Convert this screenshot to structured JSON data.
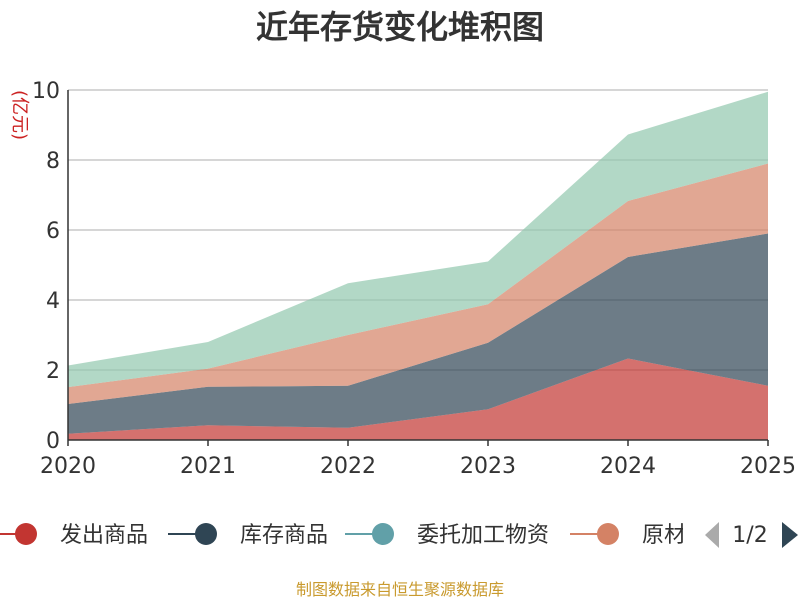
{
  "chart_data": {
    "type": "area",
    "stacked": true,
    "title": "近年存货变化堆积图",
    "ylabel": "(亿元)",
    "xlabel": "",
    "x": [
      "2020",
      "2021",
      "2022",
      "2023",
      "2024",
      "2025"
    ],
    "ylim": [
      0,
      10
    ],
    "yticks": [
      0,
      2,
      4,
      6,
      8,
      10
    ],
    "grid": true,
    "series": [
      {
        "name": "发出商品",
        "color": "#c23531",
        "values": [
          0.18,
          0.42,
          0.35,
          0.88,
          2.33,
          1.55
        ]
      },
      {
        "name": "库存商品",
        "color": "#2f4554",
        "values": [
          0.85,
          1.1,
          1.2,
          1.9,
          2.9,
          4.35
        ]
      },
      {
        "name": "委托加工物资",
        "color": "#61a0a8",
        "values": [
          0,
          0,
          0,
          0,
          0,
          0
        ]
      },
      {
        "name": "原材料",
        "color": "#d48265",
        "values": [
          0.48,
          0.52,
          1.45,
          1.1,
          1.6,
          2.0
        ]
      },
      {
        "name": "",
        "color": "#91c7ae",
        "values": [
          0.62,
          0.76,
          1.48,
          1.22,
          1.9,
          2.05
        ]
      }
    ],
    "legend": {
      "position": "bottom",
      "visible_items": [
        "发出商品",
        "库存商品",
        "委托加工物资",
        "原材料"
      ],
      "page": "1/2"
    },
    "footer": "制图数据来自恒生聚源数据库"
  }
}
